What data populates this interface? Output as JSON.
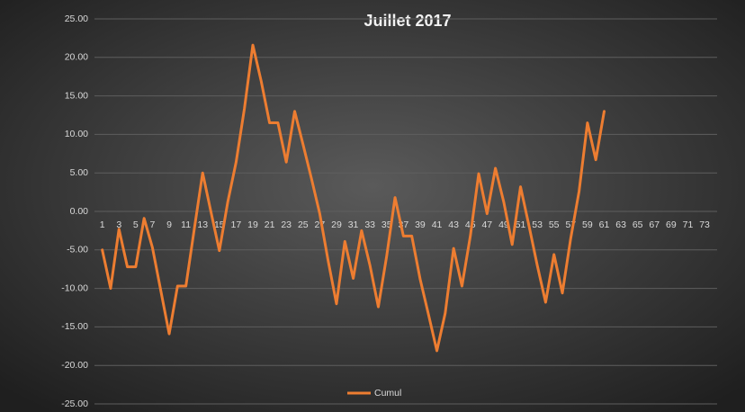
{
  "chart_data": {
    "type": "line",
    "title": "Juillet  2017",
    "categories": [
      1,
      null,
      3,
      null,
      5,
      null,
      7,
      null,
      9,
      null,
      11,
      null,
      13,
      null,
      15,
      null,
      17,
      null,
      19,
      null,
      21,
      null,
      23,
      null,
      25,
      null,
      27,
      null,
      29,
      null,
      31,
      null,
      33,
      null,
      35,
      null,
      37,
      null,
      39,
      null,
      41,
      null,
      43,
      null,
      45,
      null,
      47,
      null,
      49,
      null,
      51,
      null,
      53,
      null,
      55,
      null,
      57,
      null,
      59,
      null,
      61,
      null,
      63,
      null,
      65,
      null,
      67,
      null,
      69,
      null,
      71,
      null,
      73,
      null
    ],
    "series": [
      {
        "name": "Cumul",
        "color": "#ed7d31",
        "values": [
          -5.0,
          -10.0,
          -2.3,
          -7.2,
          -7.2,
          -0.9,
          -4.7,
          -10.3,
          -15.9,
          -9.7,
          -9.7,
          -2.3,
          5.0,
          -0.1,
          -5.1,
          1.2,
          6.4,
          13.4,
          21.6,
          16.9,
          11.5,
          11.5,
          6.4,
          13.0,
          8.7,
          4.3,
          -0.3,
          -6.4,
          -12.0,
          -3.9,
          -8.7,
          -2.5,
          -7.0,
          -12.4,
          -5.8,
          1.8,
          -3.2,
          -3.2,
          -8.8,
          -13.4,
          -18.1,
          -13.2,
          -4.8,
          -9.7,
          -3.2,
          4.9,
          -0.3,
          5.6,
          1.2,
          -4.3,
          3.2,
          -1.8,
          -7.0,
          -11.8,
          -5.6,
          -10.6,
          -3.5,
          2.6,
          11.5,
          6.7,
          13.0,
          null,
          null,
          null,
          null,
          null,
          null,
          null,
          null,
          null,
          null,
          null,
          null,
          null
        ]
      }
    ],
    "ylim": [
      -25,
      25
    ],
    "yticks": [
      {
        "value": -25,
        "label": "-25.00"
      },
      {
        "value": -20,
        "label": "-20.00"
      },
      {
        "value": -15,
        "label": "-15.00"
      },
      {
        "value": -10,
        "label": "-10.00"
      },
      {
        "value": -5,
        "label": "-5.00"
      },
      {
        "value": 0,
        "label": "0.00"
      },
      {
        "value": 5,
        "label": "5.00"
      },
      {
        "value": 10,
        "label": "10.00"
      },
      {
        "value": 15,
        "label": "15.00"
      },
      {
        "value": 20,
        "label": "20.00"
      },
      {
        "value": 25,
        "label": "25.00"
      }
    ],
    "grid": true,
    "legend": "bottom"
  }
}
